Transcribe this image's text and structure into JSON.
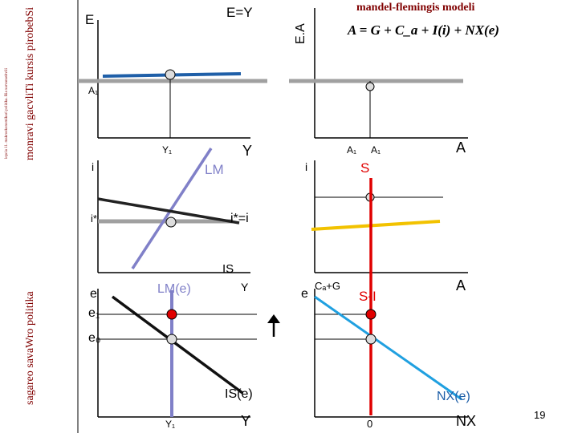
{
  "sidebar": {
    "title_top": "lepcia 11. makroekonomikuri politika. Ria xarvanashvili",
    "title_main": "monravi gacvliTi kursis pirobebSi",
    "subtitle": "sagareo savaWro politika"
  },
  "header": {
    "title": "mandel-flemingis modeli",
    "equation": "A = G + C_a + I(i) + NX(e)"
  },
  "labels": {
    "E": "E",
    "E_eq_Y": "E=Y",
    "EA": "E.A",
    "A1_left": "A₁",
    "Y1_top": "Y₁",
    "Y_top": "Y",
    "A1_mid_a": "A₁",
    "A1_mid_b": "A₁",
    "A_top": "A",
    "i_left": "i",
    "LM": "LM",
    "i_right": "i",
    "S": "S",
    "i_star_left": "i*",
    "i_star_eq": "i*=i",
    "IS": "IS",
    "e_left": "e",
    "LM_e": "LM(e)",
    "Y_mid": "Y",
    "e_right": "e",
    "Ca_G": "Cₐ+G",
    "S_minus_I": "S-I",
    "A_mid": "A",
    "e1": "e₁",
    "e0": "e₀",
    "IS_e": "IS(e)",
    "NX_e": "NX(e)",
    "Y1_bottom": "Y₁",
    "Y_bottom": "Y",
    "zero": "0",
    "NX": "NX",
    "page_number": "19"
  },
  "colors": {
    "blue_line": "#1f5fa8",
    "gray_line": "#a0a0a0",
    "purple_line": "#8080c8",
    "red_line": "#e00000",
    "yellow_line": "#f2c200",
    "cyan_line": "#20a0e0",
    "black_line": "#000000",
    "sidebar_text": "#800000",
    "dot_fill": "#dddddd"
  }
}
